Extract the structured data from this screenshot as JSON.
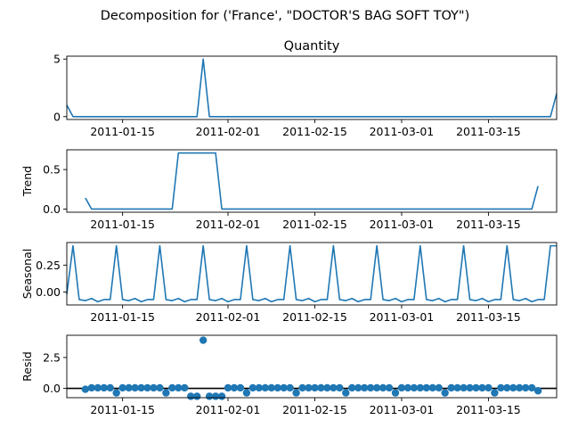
{
  "suptitle": "Decomposition for ('France', \"DOCTOR'S BAG SOFT TOY\")",
  "colors": {
    "line": "#1f77b4",
    "marker": "#1f77b4",
    "zero_line": "#000000"
  },
  "x_ticks": [
    "2011-01-15",
    "2011-02-01",
    "2011-02-15",
    "2011-03-01",
    "2011-03-15"
  ],
  "chart_data": [
    {
      "type": "line",
      "title": "Quantity",
      "ylabel": "",
      "ylim": [
        -0.25,
        5.25
      ],
      "yticks": [
        0,
        5
      ],
      "x_start": "2011-01-06",
      "x_end": "2011-03-26",
      "values": [
        1,
        0,
        0,
        0,
        0,
        0,
        0,
        0,
        0,
        0,
        0,
        0,
        0,
        0,
        0,
        0,
        0,
        0,
        0,
        0,
        0,
        0,
        5,
        0,
        0,
        0,
        0,
        0,
        0,
        0,
        0,
        0,
        0,
        0,
        0,
        0,
        0,
        0,
        0,
        0,
        0,
        0,
        0,
        0,
        0,
        0,
        0,
        0,
        0,
        0,
        0,
        0,
        0,
        0,
        0,
        0,
        0,
        0,
        0,
        0,
        0,
        0,
        0,
        0,
        0,
        0,
        0,
        0,
        0,
        0,
        0,
        0,
        0,
        0,
        0,
        0,
        0,
        0,
        0,
        2
      ]
    },
    {
      "type": "line",
      "title": "",
      "ylabel": "Trend",
      "ylim": [
        -0.04,
        0.75
      ],
      "yticks": [
        0.0,
        0.5
      ],
      "ytick_labels": [
        "0.0",
        "0.5"
      ],
      "x_start": "2011-01-06",
      "x_end": "2011-03-26",
      "values": [
        null,
        null,
        null,
        0.14,
        0,
        0,
        0,
        0,
        0,
        0,
        0,
        0,
        0,
        0,
        0,
        0,
        0,
        0,
        0.71,
        0.71,
        0.71,
        0.71,
        0.71,
        0.71,
        0.71,
        0,
        0,
        0,
        0,
        0,
        0,
        0,
        0,
        0,
        0,
        0,
        0,
        0,
        0,
        0,
        0,
        0,
        0,
        0,
        0,
        0,
        0,
        0,
        0,
        0,
        0,
        0,
        0,
        0,
        0,
        0,
        0,
        0,
        0,
        0,
        0,
        0,
        0,
        0,
        0,
        0,
        0,
        0,
        0,
        0,
        0,
        0,
        0,
        0,
        0,
        0,
        0.29,
        null,
        null,
        null
      ]
    },
    {
      "type": "line",
      "title": "",
      "ylabel": "Seasonal",
      "ylim": [
        -0.12,
        0.46
      ],
      "yticks": [
        0.0,
        0.25
      ],
      "ytick_labels": [
        "0.00",
        "0.25"
      ],
      "x_start": "2011-01-06",
      "x_end": "2011-03-26",
      "values": [
        -0.02,
        0.43,
        -0.07,
        -0.08,
        -0.06,
        -0.09,
        -0.07,
        -0.07,
        0.43,
        -0.07,
        -0.08,
        -0.06,
        -0.09,
        -0.07,
        -0.07,
        0.43,
        -0.07,
        -0.08,
        -0.06,
        -0.09,
        -0.07,
        -0.07,
        0.43,
        -0.07,
        -0.08,
        -0.06,
        -0.09,
        -0.07,
        -0.07,
        0.43,
        -0.07,
        -0.08,
        -0.06,
        -0.09,
        -0.07,
        -0.07,
        0.43,
        -0.07,
        -0.08,
        -0.06,
        -0.09,
        -0.07,
        -0.07,
        0.43,
        -0.07,
        -0.08,
        -0.06,
        -0.09,
        -0.07,
        -0.07,
        0.43,
        -0.07,
        -0.08,
        -0.06,
        -0.09,
        -0.07,
        -0.07,
        0.43,
        -0.07,
        -0.08,
        -0.06,
        -0.09,
        -0.07,
        -0.07,
        0.43,
        -0.07,
        -0.08,
        -0.06,
        -0.09,
        -0.07,
        -0.07,
        0.43,
        -0.07,
        -0.08,
        -0.06,
        -0.09,
        -0.07,
        -0.07,
        0.43,
        0.43
      ]
    },
    {
      "type": "scatter",
      "title": "",
      "ylabel": "Resid",
      "ylim": [
        -0.75,
        4.3
      ],
      "yticks": [
        0.0,
        2.5
      ],
      "ytick_labels": [
        "0.0",
        "2.5"
      ],
      "zero_line": true,
      "x_start": "2011-01-06",
      "x_end": "2011-03-26",
      "values": [
        null,
        null,
        null,
        -0.07,
        0.05,
        0.05,
        0.05,
        0.05,
        -0.36,
        0.05,
        0.05,
        0.05,
        0.05,
        0.05,
        0.05,
        0.05,
        -0.36,
        0.05,
        0.05,
        0.05,
        -0.64,
        -0.64,
        3.9,
        -0.64,
        -0.64,
        -0.64,
        0.05,
        0.05,
        0.05,
        -0.36,
        0.05,
        0.05,
        0.05,
        0.05,
        0.05,
        0.05,
        0.05,
        -0.36,
        0.05,
        0.05,
        0.05,
        0.05,
        0.05,
        0.05,
        0.05,
        -0.36,
        0.05,
        0.05,
        0.05,
        0.05,
        0.05,
        0.05,
        0.05,
        -0.36,
        0.05,
        0.05,
        0.05,
        0.05,
        0.05,
        0.05,
        0.05,
        -0.36,
        0.05,
        0.05,
        0.05,
        0.05,
        0.05,
        0.05,
        0.05,
        -0.36,
        0.05,
        0.05,
        0.05,
        0.05,
        0.05,
        0.05,
        -0.19,
        null,
        null,
        null
      ]
    }
  ]
}
